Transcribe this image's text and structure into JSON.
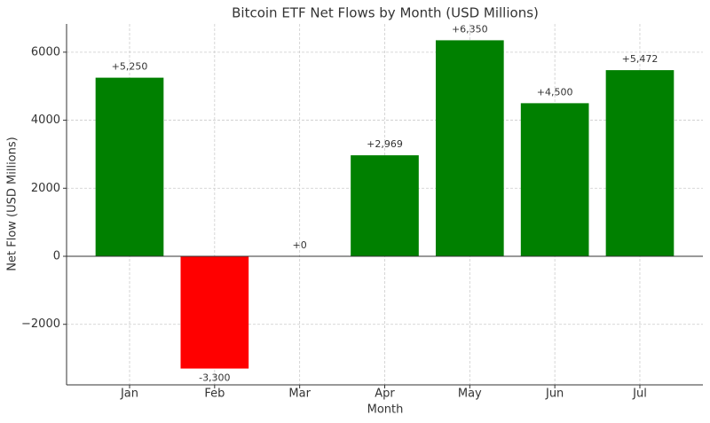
{
  "chart_data": {
    "type": "bar",
    "title": "Bitcoin ETF Net Flows by Month (USD Millions)",
    "x_label": "Month",
    "y_label": "Net Flow (USD Millions)",
    "categories": [
      "Jan",
      "Feb",
      "Mar",
      "Apr",
      "May",
      "Jun",
      "Jul"
    ],
    "values": [
      5250,
      -3300,
      0,
      2969,
      6350,
      4500,
      5472
    ],
    "value_labels": [
      "+5,250",
      "-3,300",
      "+0",
      "+2,969",
      "+6,350",
      "+4,500",
      "+5,472"
    ],
    "colors": [
      "#008000",
      "#ff0000",
      "#008000",
      "#008000",
      "#008000",
      "#008000",
      "#008000"
    ],
    "ylim": [
      -3780,
      6830
    ],
    "yticks": [
      {
        "value": -2000,
        "label": "−2000"
      },
      0,
      2000,
      4000,
      6000
    ],
    "grid": true
  }
}
